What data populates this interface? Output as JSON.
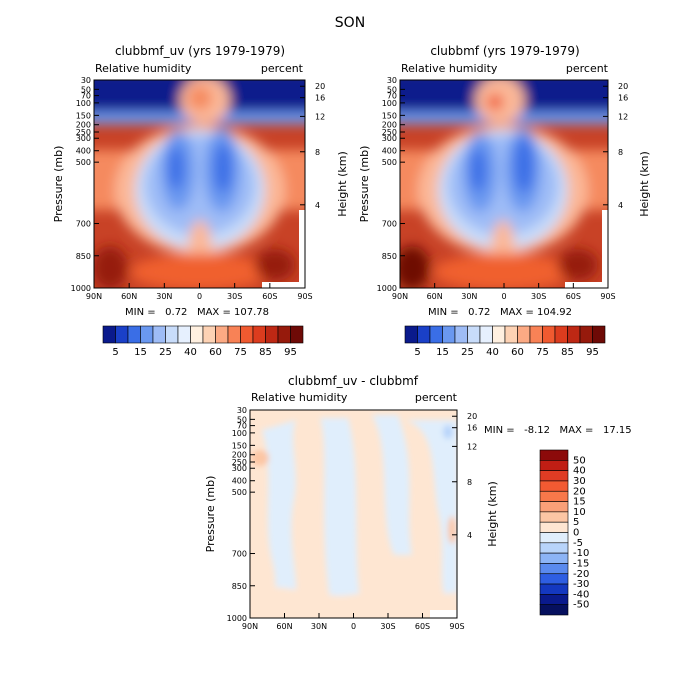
{
  "page_title": "SON",
  "chart_data": [
    {
      "type": "heatmap",
      "title": "clubbmf_uv (yrs 1979-1979)",
      "left_label": "Relative humidity",
      "right_label": "percent",
      "ylabel": "Pressure (mb)",
      "ylabel_right": "Height (km)",
      "x_ticks": [
        "90N",
        "60N",
        "30N",
        "0",
        "30S",
        "60S",
        "90S"
      ],
      "y_ticks": [
        "30",
        "50",
        "70",
        "100",
        "150",
        "200",
        "250",
        "300",
        "400",
        "500",
        "700",
        "850",
        "1000"
      ],
      "y_ticks_right": [
        "20",
        "16",
        "12",
        "8",
        "4"
      ],
      "min_max_text": "MIN =   0.72   MAX = 107.78",
      "colorbar_labels": [
        "5",
        "15",
        "25",
        "40",
        "60",
        "75",
        "85",
        "95"
      ],
      "colorbar_colors": [
        "#0a1a8c",
        "#1a40c8",
        "#3a6ee6",
        "#6a98f0",
        "#9ebcf6",
        "#c8dcfa",
        "#e6f0fe",
        "#fff0e0",
        "#fdd2b4",
        "#fcaa84",
        "#f88256",
        "#f05a30",
        "#dc3c1e",
        "#be2814",
        "#961a0c",
        "#6e0a06"
      ]
    },
    {
      "type": "heatmap",
      "title": "clubbmf (yrs 1979-1979)",
      "left_label": "Relative humidity",
      "right_label": "percent",
      "ylabel": "Pressure (mb)",
      "ylabel_right": "Height (km)",
      "x_ticks": [
        "90N",
        "60N",
        "30N",
        "0",
        "30S",
        "60S",
        "90S"
      ],
      "y_ticks": [
        "30",
        "50",
        "70",
        "100",
        "150",
        "200",
        "250",
        "300",
        "400",
        "500",
        "700",
        "850",
        "1000"
      ],
      "y_ticks_right": [
        "20",
        "16",
        "12",
        "8",
        "4"
      ],
      "min_max_text": "MIN =   0.72   MAX = 104.92",
      "colorbar_labels": [
        "5",
        "15",
        "25",
        "40",
        "60",
        "75",
        "85",
        "95"
      ],
      "colorbar_colors": [
        "#0a1a8c",
        "#1a40c8",
        "#3a6ee6",
        "#6a98f0",
        "#9ebcf6",
        "#c8dcfa",
        "#e6f0fe",
        "#fff0e0",
        "#fdd2b4",
        "#fcaa84",
        "#f88256",
        "#f05a30",
        "#dc3c1e",
        "#be2814",
        "#961a0c",
        "#6e0a06"
      ]
    },
    {
      "type": "heatmap",
      "title": "clubbmf_uv - clubbmf",
      "left_label": "Relative humidity",
      "right_label": "percent",
      "ylabel": "Pressure (mb)",
      "ylabel_right": "Height (km)",
      "x_ticks": [
        "90N",
        "60N",
        "30N",
        "0",
        "30S",
        "60S",
        "90S"
      ],
      "y_ticks": [
        "30",
        "50",
        "70",
        "100",
        "150",
        "200",
        "250",
        "300",
        "400",
        "500",
        "700",
        "850",
        "1000"
      ],
      "y_ticks_right": [
        "20",
        "16",
        "12",
        "8",
        "4"
      ],
      "min_max_text": "MIN =   -8.12   MAX =   17.15",
      "colorbar_labels": [
        "50",
        "40",
        "30",
        "20",
        "15",
        "10",
        "5",
        "0",
        "-5",
        "-10",
        "-15",
        "-20",
        "-30",
        "-40",
        "-50"
      ],
      "colorbar_colors": [
        "#8c0a0a",
        "#c01e14",
        "#e03c24",
        "#f25a32",
        "#f8784a",
        "#faa078",
        "#fcc6a4",
        "#fee6d2",
        "#e0eefc",
        "#b8d4fa",
        "#8cb4f6",
        "#5a8aee",
        "#2e5ee2",
        "#1438c0",
        "#0a1a8c",
        "#06105e"
      ]
    }
  ]
}
